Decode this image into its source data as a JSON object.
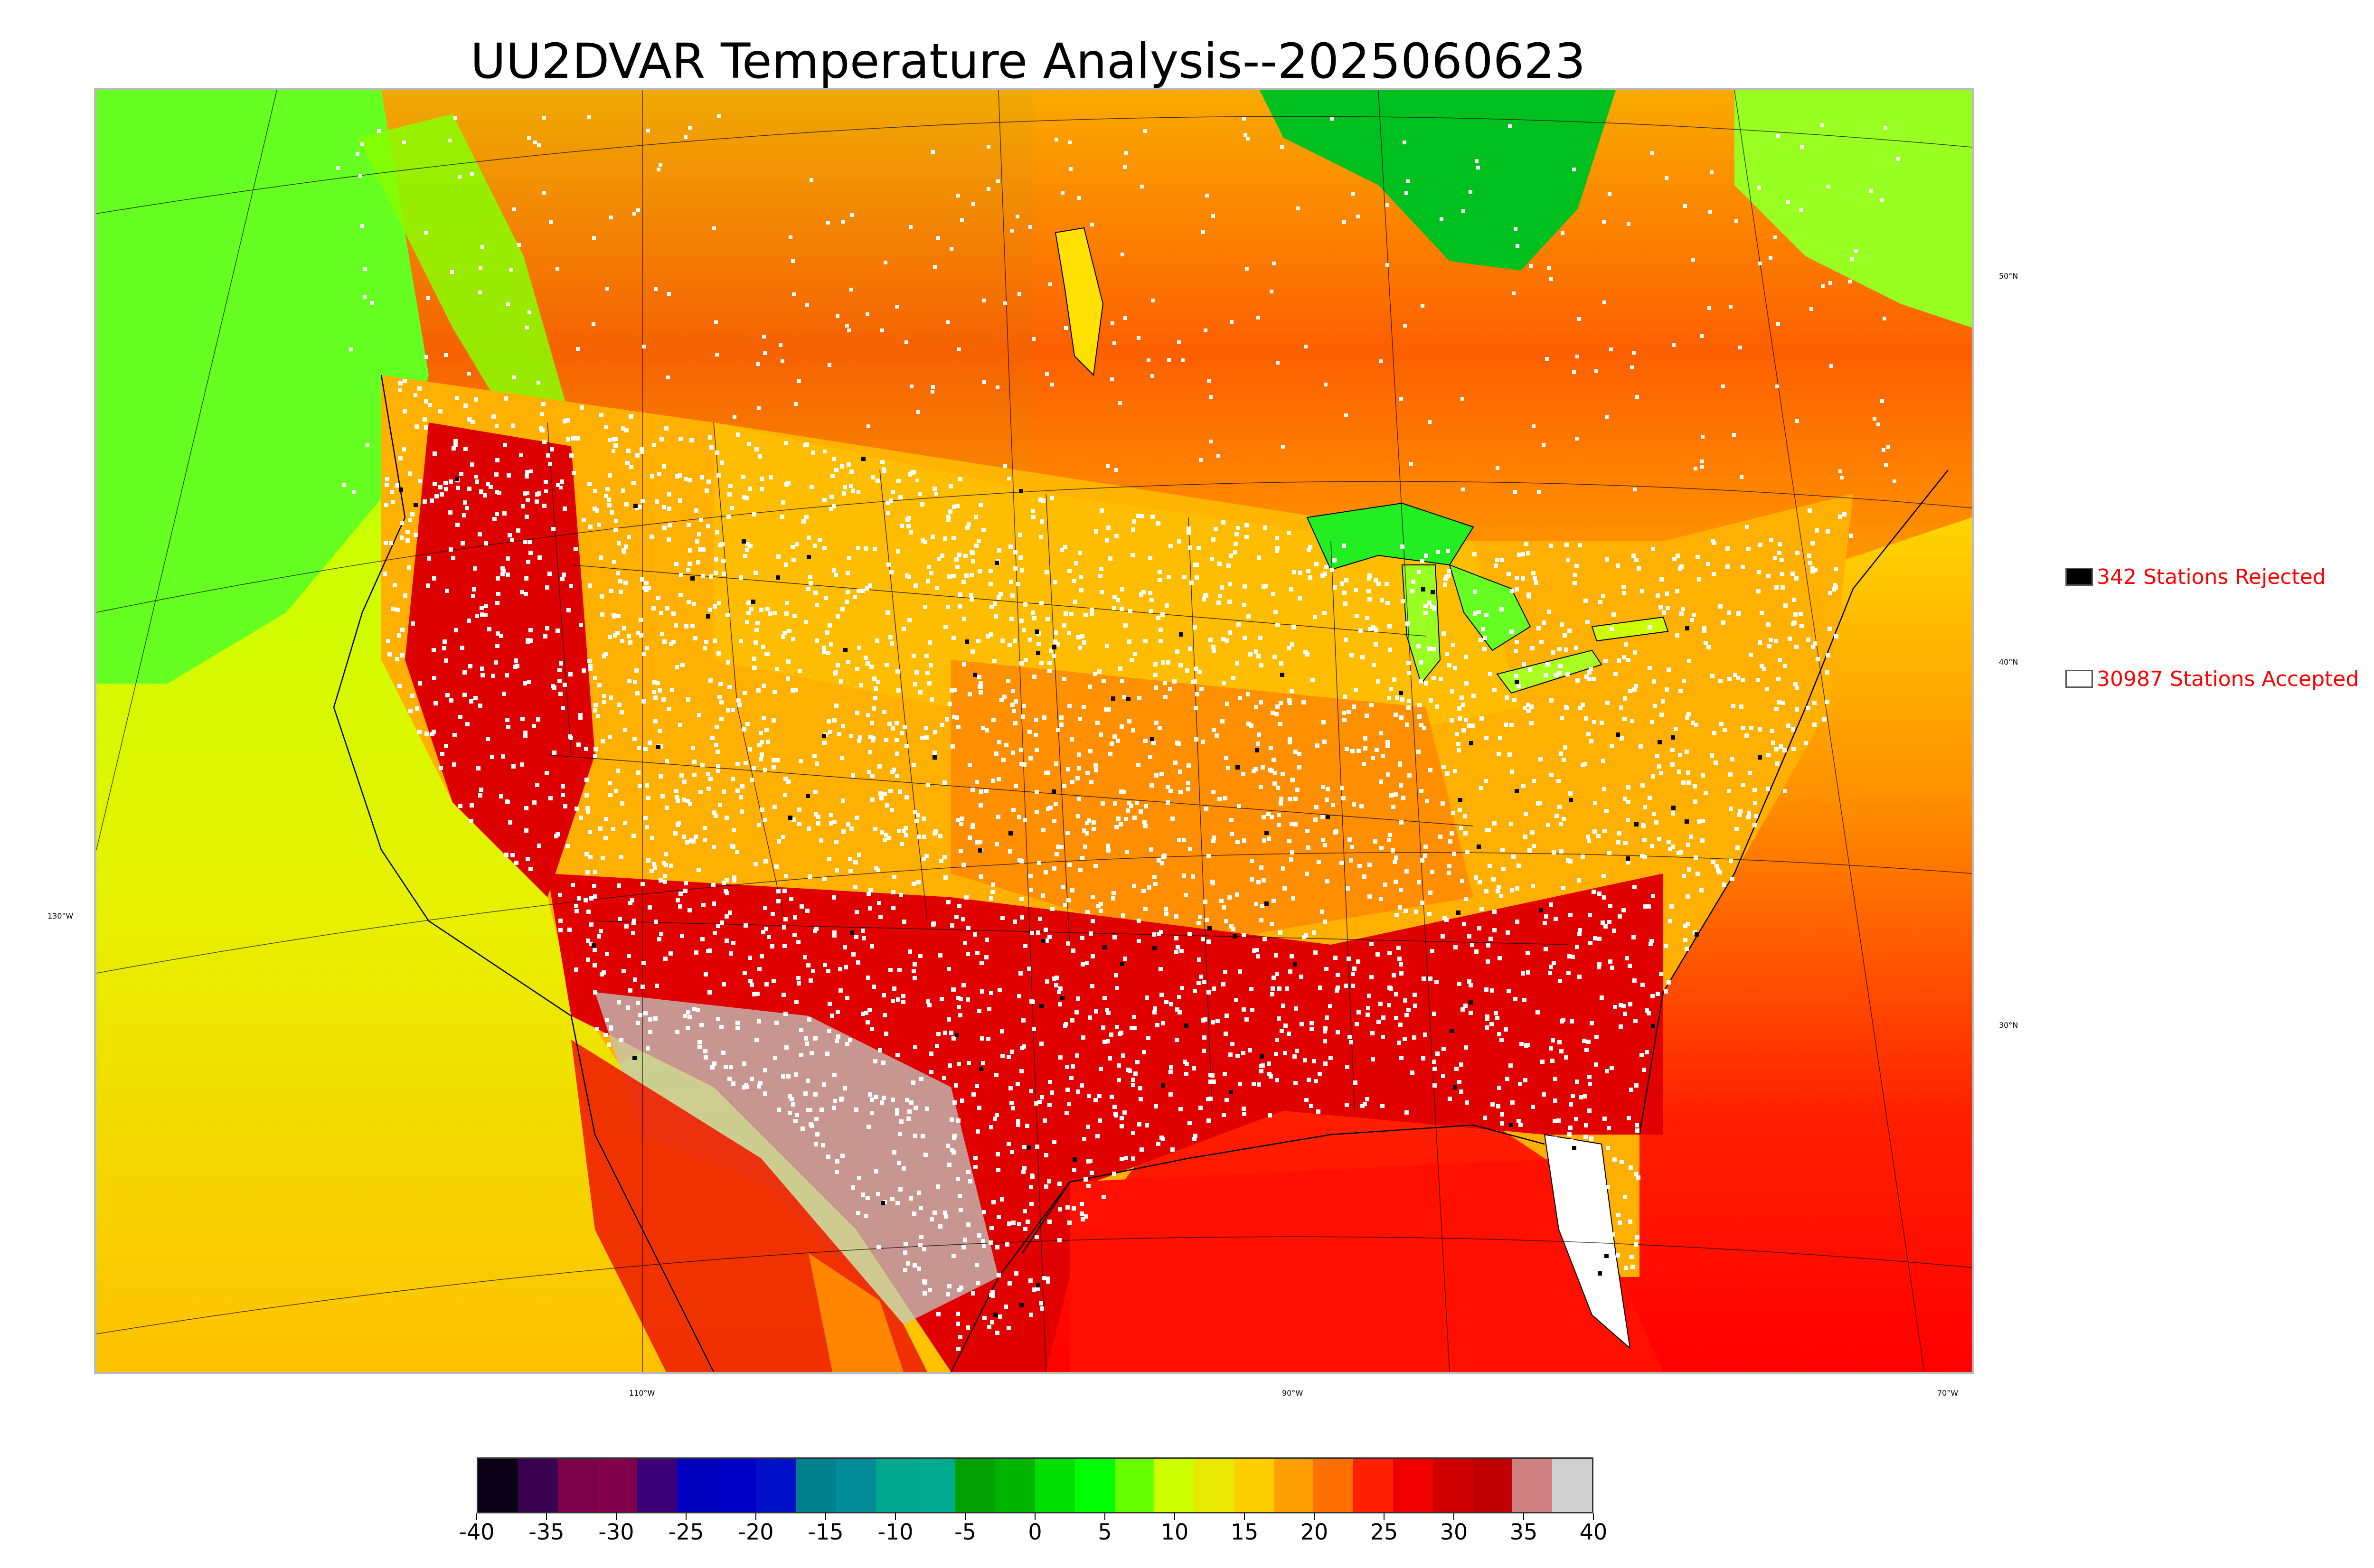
{
  "title": "UU2DVAR Temperature Analysis--2025060623",
  "map": {
    "lon_labels": [
      "130°W",
      "110°W",
      "90°W",
      "70°W"
    ],
    "lat_labels": [
      "50°N",
      "40°N",
      "30°N"
    ]
  },
  "legend": {
    "rejected": {
      "label": "342 Stations Rejected",
      "color": "#000000"
    },
    "accepted": {
      "label": "30987 Stations Accepted",
      "color": "#ffffff"
    },
    "text_color": "#ff0000"
  },
  "colorbar": {
    "tick_labels": [
      "-40",
      "-35",
      "-30",
      "-25",
      "-20",
      "-15",
      "-10",
      "-5",
      "0",
      "5",
      "10",
      "15",
      "20",
      "25",
      "30",
      "35",
      "40"
    ],
    "range": [
      -40,
      40
    ],
    "colors": [
      "#0b0018",
      "#3a0050",
      "#7a0048",
      "#80004c",
      "#3b0078",
      "#0000c0",
      "#0000c8",
      "#0010c8",
      "#00808c",
      "#008c96",
      "#00a890",
      "#00aa90",
      "#00a000",
      "#00b400",
      "#00e000",
      "#00ff00",
      "#66ff00",
      "#ccff00",
      "#e8e800",
      "#ffd000",
      "#ffa000",
      "#ff7000",
      "#ff2000",
      "#ee0000",
      "#d00000",
      "#c00000",
      "#d08080",
      "#d0d0d0"
    ]
  }
}
